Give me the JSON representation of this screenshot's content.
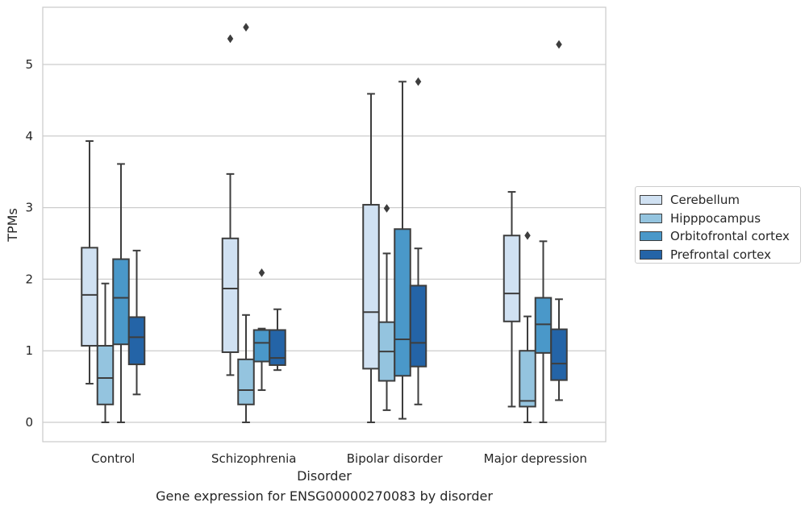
{
  "caption": "Gene expression for ENSG00000270083 by disorder",
  "chart_data": {
    "type": "box",
    "title": "",
    "xlabel": "Disorder",
    "ylabel": "TPMs",
    "ylim": [
      -0.27,
      5.8
    ],
    "yticks": [
      0,
      1,
      2,
      3,
      4,
      5
    ],
    "grid": "horizontal",
    "legend_position": "right",
    "categories": [
      "Control",
      "Schizophrenia",
      "Bipolar disorder",
      "Major depression"
    ],
    "series": [
      {
        "name": "Cerebellum",
        "color": "#d0e1f2",
        "boxes": [
          {
            "whisker_low": 0.54,
            "q1": 1.07,
            "median": 1.78,
            "q3": 2.44,
            "whisker_high": 3.93,
            "outliers": []
          },
          {
            "whisker_low": 0.66,
            "q1": 0.98,
            "median": 1.87,
            "q3": 2.57,
            "whisker_high": 3.47,
            "outliers": [
              5.36
            ]
          },
          {
            "whisker_low": 0.0,
            "q1": 0.75,
            "median": 1.54,
            "q3": 3.04,
            "whisker_high": 4.59,
            "outliers": []
          },
          {
            "whisker_low": 0.22,
            "q1": 1.41,
            "median": 1.8,
            "q3": 2.61,
            "whisker_high": 3.22,
            "outliers": []
          }
        ]
      },
      {
        "name": "Hipppocampus",
        "color": "#94c4df",
        "boxes": [
          {
            "whisker_low": 0.0,
            "q1": 0.25,
            "median": 0.62,
            "q3": 1.07,
            "whisker_high": 1.94,
            "outliers": []
          },
          {
            "whisker_low": 0.0,
            "q1": 0.25,
            "median": 0.45,
            "q3": 0.88,
            "whisker_high": 1.5,
            "outliers": [
              5.52
            ]
          },
          {
            "whisker_low": 0.17,
            "q1": 0.58,
            "median": 0.99,
            "q3": 1.4,
            "whisker_high": 2.36,
            "outliers": [
              2.99
            ]
          },
          {
            "whisker_low": 0.0,
            "q1": 0.22,
            "median": 0.3,
            "q3": 1.0,
            "whisker_high": 1.48,
            "outliers": [
              2.61
            ]
          }
        ]
      },
      {
        "name": "Orbitofrontal cortex",
        "color": "#4a98c9",
        "boxes": [
          {
            "whisker_low": 0.0,
            "q1": 1.09,
            "median": 1.74,
            "q3": 2.28,
            "whisker_high": 3.61,
            "outliers": []
          },
          {
            "whisker_low": 0.45,
            "q1": 0.85,
            "median": 1.11,
            "q3": 1.29,
            "whisker_high": 1.31,
            "outliers": [
              2.09
            ]
          },
          {
            "whisker_low": 0.05,
            "q1": 0.65,
            "median": 1.16,
            "q3": 2.7,
            "whisker_high": 4.76,
            "outliers": []
          },
          {
            "whisker_low": 0.0,
            "q1": 0.97,
            "median": 1.37,
            "q3": 1.74,
            "whisker_high": 2.53,
            "outliers": []
          }
        ]
      },
      {
        "name": "Prefrontal cortex",
        "color": "#2464a7",
        "boxes": [
          {
            "whisker_low": 0.39,
            "q1": 0.81,
            "median": 1.19,
            "q3": 1.47,
            "whisker_high": 2.4,
            "outliers": []
          },
          {
            "whisker_low": 0.73,
            "q1": 0.8,
            "median": 0.9,
            "q3": 1.29,
            "whisker_high": 1.58,
            "outliers": []
          },
          {
            "whisker_low": 0.25,
            "q1": 0.78,
            "median": 1.11,
            "q3": 1.91,
            "whisker_high": 2.43,
            "outliers": [
              4.76
            ]
          },
          {
            "whisker_low": 0.31,
            "q1": 0.59,
            "median": 0.82,
            "q3": 1.3,
            "whisker_high": 1.72,
            "outliers": [
              5.28
            ]
          }
        ]
      }
    ]
  }
}
